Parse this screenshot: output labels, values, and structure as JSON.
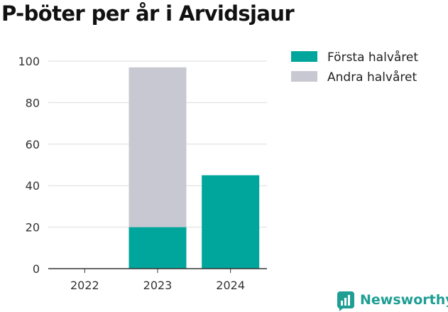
{
  "chart_data": {
    "type": "bar",
    "stacked": true,
    "title": "P-böter per år i Arvidsjaur",
    "xlabel": "",
    "ylabel": "",
    "categories": [
      "2022",
      "2023",
      "2024"
    ],
    "series": [
      {
        "name": "Första halvåret",
        "values": [
          0,
          20,
          45
        ],
        "color": "#00a59b"
      },
      {
        "name": "Andra halvåret",
        "values": [
          0,
          77,
          0
        ],
        "color": "#c8c8d2"
      }
    ],
    "ylim": [
      0,
      100
    ],
    "yticks": [
      0,
      20,
      40,
      60,
      80,
      100
    ],
    "grid": true,
    "legend_position": "right"
  },
  "branding": {
    "logo_text": "Newsworthy",
    "logo_color": "#1f9e94"
  }
}
